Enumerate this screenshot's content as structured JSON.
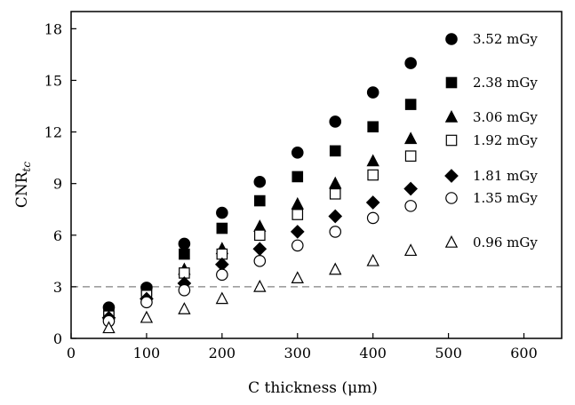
{
  "chart_data": {
    "type": "scatter",
    "xlabel": "C thickness (μm)",
    "ylabel": "CNR",
    "ylabel_sub": "tc",
    "xlim": [
      0,
      650
    ],
    "ylim": [
      0,
      19
    ],
    "xticks": [
      0,
      100,
      200,
      300,
      400,
      500,
      600
    ],
    "yticks": [
      0,
      3,
      6,
      9,
      12,
      15,
      18
    ],
    "grid": false,
    "legend_position": "right, next to series",
    "reference_line": {
      "y": 3,
      "style": "dashed",
      "color": "#808080"
    },
    "x": [
      50,
      100,
      150,
      200,
      250,
      300,
      350,
      400,
      450
    ],
    "series": [
      {
        "name": "3.52 mGy",
        "marker": "circle-filled",
        "values": [
          1.8,
          2.95,
          5.5,
          7.3,
          9.1,
          10.8,
          12.6,
          14.3,
          16.0
        ]
      },
      {
        "name": "2.38 mGy",
        "marker": "square-filled",
        "values": [
          1.6,
          2.8,
          4.9,
          6.4,
          8.0,
          9.4,
          10.9,
          12.3,
          13.6
        ]
      },
      {
        "name": "3.06 mGy",
        "marker": "triangle-filled",
        "values": [
          1.4,
          2.6,
          4.0,
          5.2,
          6.5,
          7.8,
          9.0,
          10.3,
          11.6
        ]
      },
      {
        "name": "1.92 mGy",
        "marker": "square-open",
        "values": [
          1.3,
          2.5,
          3.8,
          4.9,
          6.0,
          7.2,
          8.4,
          9.5,
          10.6
        ]
      },
      {
        "name": "1.81 mGy",
        "marker": "diamond-filled",
        "values": [
          1.2,
          2.3,
          3.2,
          4.3,
          5.2,
          6.2,
          7.1,
          7.9,
          8.7
        ]
      },
      {
        "name": "1.35 mGy",
        "marker": "circle-open",
        "values": [
          1.0,
          2.1,
          2.8,
          3.7,
          4.5,
          5.4,
          6.2,
          7.0,
          7.7
        ]
      },
      {
        "name": "0.96 mGy",
        "marker": "triangle-open",
        "values": [
          0.6,
          1.2,
          1.7,
          2.3,
          3.0,
          3.5,
          4.0,
          4.5,
          5.1
        ]
      }
    ]
  }
}
